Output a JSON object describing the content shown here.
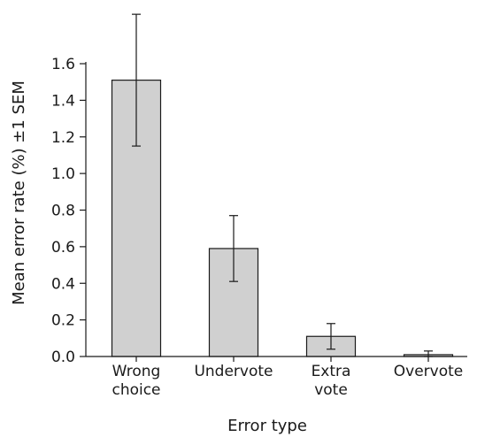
{
  "chart_data": {
    "type": "bar",
    "title": "",
    "xlabel": "Error type",
    "ylabel": "Mean error rate (%) ±1 SEM",
    "ylim": [
      0,
      1.6
    ],
    "yticks": [
      "0.0",
      "0.2",
      "0.4",
      "0.6",
      "0.8",
      "1.0",
      "1.2",
      "1.4",
      "1.6"
    ],
    "categories": [
      [
        "Wrong",
        "choice"
      ],
      [
        "Undervote"
      ],
      [
        "Extra",
        "vote"
      ],
      [
        "Overvote"
      ]
    ],
    "values": [
      1.51,
      0.59,
      0.11,
      0.01
    ],
    "error_low": [
      1.15,
      0.41,
      0.04,
      0.0
    ],
    "error_high": [
      1.87,
      0.77,
      0.18,
      0.03
    ],
    "grid": false,
    "legend": "none",
    "bar_color": "#d0d0d0",
    "bar_edge_color": "#1a1a1a"
  }
}
